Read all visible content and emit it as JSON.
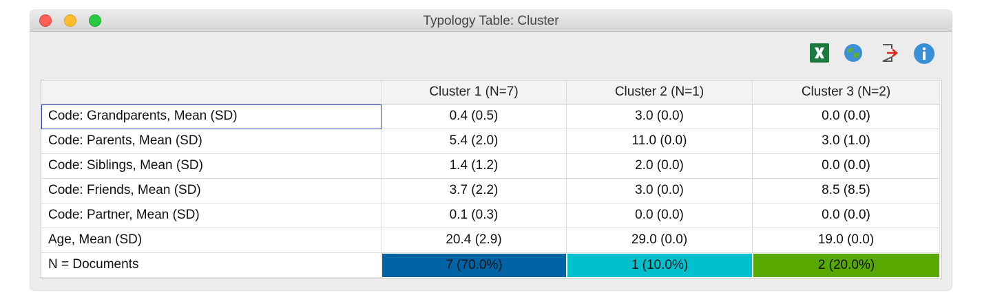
{
  "window": {
    "title": "Typology Table: Cluster"
  },
  "table": {
    "columns": [
      "Cluster 1 (N=7)",
      "Cluster 2 (N=1)",
      "Cluster 3 (N=2)"
    ],
    "rows": [
      {
        "label": "Code: Grandparents, Mean (SD)",
        "cells": [
          "0.4 (0.5)",
          "3.0 (0.0)",
          "0.0 (0.0)"
        ]
      },
      {
        "label": "Code: Parents, Mean (SD)",
        "cells": [
          "5.4 (2.0)",
          "11.0 (0.0)",
          "3.0 (1.0)"
        ]
      },
      {
        "label": "Code: Siblings, Mean (SD)",
        "cells": [
          "1.4 (1.2)",
          "2.0 (0.0)",
          "0.0 (0.0)"
        ]
      },
      {
        "label": "Code: Friends, Mean (SD)",
        "cells": [
          "3.7 (2.2)",
          "3.0 (0.0)",
          "8.5 (8.5)"
        ]
      },
      {
        "label": "Code: Partner, Mean (SD)",
        "cells": [
          "0.1 (0.3)",
          "0.0 (0.0)",
          "0.0 (0.0)"
        ]
      },
      {
        "label": "Age, Mean (SD)",
        "cells": [
          "20.4 (2.9)",
          "29.0 (0.0)",
          "19.0 (0.0)"
        ]
      },
      {
        "label": "N = Documents",
        "cells": [
          "7 (70.0%)",
          "1 (10.0%)",
          "2 (20.0%)"
        ],
        "cell_colors": [
          "#0063a6",
          "#00c0cd",
          "#57a800"
        ]
      }
    ]
  }
}
